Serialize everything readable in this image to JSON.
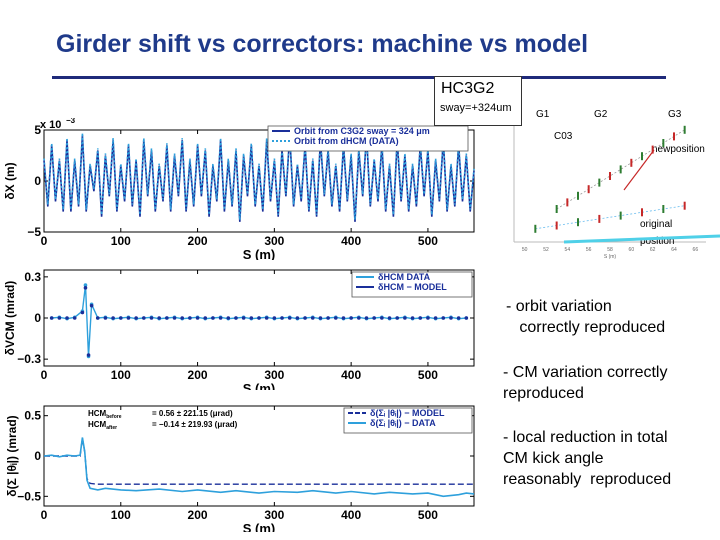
{
  "title": "Girder shift vs correctors: machine vs model",
  "hc_box": {
    "label": "HC3G2",
    "sway": "sway=+324um"
  },
  "notes": [
    [
      "- orbit variation",
      "   correctly reproduced"
    ],
    [
      "- CM variation correctly",
      "reproduced"
    ],
    [
      "- local reduction in total",
      "CM kick angle",
      "reasonably  reproduced"
    ]
  ],
  "colors": {
    "title": "#1f3a8a",
    "model": "#1a2f9a",
    "data": "#2ea0dc",
    "inset_red": "#c62828",
    "inset_green": "#2e7d32",
    "arrow": "#4fd0e8"
  },
  "chart_data": [
    {
      "type": "line",
      "ylabel": "δX (m)",
      "xlabel": "S (m)",
      "xlim": [
        0,
        560
      ],
      "ylim": [
        -0.005,
        0.005
      ],
      "y_multiplier_label": "x 10",
      "y_multiplier_exp": "−3",
      "xticks": [
        0,
        100,
        200,
        300,
        400,
        500
      ],
      "yticks": [
        {
          "v": 0.005,
          "label": "5"
        },
        {
          "v": 0,
          "label": "0"
        },
        {
          "v": -0.005,
          "label": "−5"
        }
      ],
      "legend_position": "top-right",
      "series": [
        {
          "name": "Orbit from C3G2 sway = 324 μm",
          "style": "solid",
          "x": [
            0,
            5,
            10,
            15,
            20,
            25,
            30,
            35,
            40,
            45,
            50,
            55,
            60,
            65,
            70,
            75,
            80,
            85,
            90,
            95,
            100,
            105,
            110,
            115,
            120,
            125,
            130,
            135,
            140,
            145,
            150,
            155,
            160,
            165,
            170,
            175,
            180,
            185,
            190,
            195,
            200,
            205,
            210,
            215,
            220,
            225,
            230,
            235,
            240,
            245,
            250,
            255,
            260,
            265,
            270,
            275,
            280,
            285,
            290,
            295,
            300,
            305,
            310,
            315,
            320,
            325,
            330,
            335,
            340,
            345,
            350,
            355,
            360,
            365,
            370,
            375,
            380,
            385,
            390,
            395,
            400,
            405,
            410,
            415,
            420,
            425,
            430,
            435,
            440,
            445,
            450,
            455,
            460,
            465,
            470,
            475,
            480,
            485,
            490,
            495,
            500,
            505,
            510,
            515,
            520,
            525,
            530,
            535,
            540,
            545,
            550,
            555,
            560
          ],
          "y": [
            0.002,
            -0.0025,
            0.0035,
            -0.002,
            0.002,
            -0.003,
            0.004,
            -0.003,
            0.002,
            -0.0025,
            0.0045,
            -0.003,
            0.0015,
            -0.001,
            0.003,
            -0.0035,
            0.0025,
            -0.0015,
            0.004,
            -0.003,
            0.0015,
            -0.002,
            0.0035,
            -0.0025,
            0.002,
            -0.0035,
            0.004,
            -0.0015,
            0.003,
            -0.003,
            0.0015,
            -0.002,
            0.0035,
            -0.003,
            0.0025,
            -0.0015,
            0.004,
            -0.003,
            0.002,
            -0.0025,
            0.0035,
            -0.0015,
            0.003,
            -0.0035,
            0.0015,
            -0.002,
            0.004,
            -0.003,
            0.002,
            -0.0025,
            0.003,
            -0.004,
            0.0025,
            -0.0015,
            0.0035,
            -0.0025,
            0.0015,
            -0.003,
            0.004,
            -0.002,
            0.002,
            -0.0035,
            0.003,
            -0.0015,
            0.0045,
            -0.0025,
            0.0015,
            -0.002,
            0.0035,
            -0.003,
            0.002,
            -0.0035,
            0.004,
            -0.0015,
            0.003,
            -0.0025,
            0.0015,
            -0.003,
            0.0035,
            -0.002,
            0.0025,
            -0.004,
            0.003,
            -0.0015,
            0.0045,
            -0.0025,
            0.002,
            -0.002,
            0.0035,
            -0.003,
            0.0015,
            -0.0035,
            0.004,
            -0.002,
            0.0025,
            -0.003,
            0.0015,
            -0.0025,
            0.0035,
            -0.0015,
            0.003,
            -0.0035,
            0.002,
            -0.002,
            0.004,
            -0.003,
            0.0015,
            -0.0025,
            0.0035,
            -0.002,
            0.0025,
            -0.003,
            0.001
          ]
        },
        {
          "name": "Orbit from dHCM (DATA)",
          "style": "dotted",
          "x": [
            0,
            5,
            10,
            15,
            20,
            25,
            30,
            35,
            40,
            45,
            50,
            55,
            60,
            65,
            70,
            75,
            80,
            85,
            90,
            95,
            100,
            105,
            110,
            115,
            120,
            125,
            130,
            135,
            140,
            145,
            150,
            155,
            160,
            165,
            170,
            175,
            180,
            185,
            190,
            195,
            200,
            205,
            210,
            215,
            220,
            225,
            230,
            235,
            240,
            245,
            250,
            255,
            260,
            265,
            270,
            275,
            280,
            285,
            290,
            295,
            300,
            305,
            310,
            315,
            320,
            325,
            330,
            335,
            340,
            345,
            350,
            355,
            360,
            365,
            370,
            375,
            380,
            385,
            390,
            395,
            400,
            405,
            410,
            415,
            420,
            425,
            430,
            435,
            440,
            445,
            450,
            455,
            460,
            465,
            470,
            475,
            480,
            485,
            490,
            495,
            500,
            505,
            510,
            515,
            520,
            525,
            530,
            535,
            540,
            545,
            550,
            555,
            560
          ],
          "y": [
            0.0022,
            -0.0023,
            0.0037,
            -0.0018,
            0.0022,
            -0.0028,
            0.0042,
            -0.0028,
            0.0022,
            -0.0023,
            0.0047,
            -0.0028,
            0.0017,
            -0.0008,
            0.0032,
            -0.0033,
            0.0027,
            -0.0013,
            0.0042,
            -0.0028,
            0.0017,
            -0.0018,
            0.0037,
            -0.0023,
            0.0022,
            -0.0033,
            0.0042,
            -0.0013,
            0.0032,
            -0.0028,
            0.0017,
            -0.0018,
            0.0037,
            -0.0028,
            0.0027,
            -0.0013,
            0.0042,
            -0.0028,
            0.0022,
            -0.0023,
            0.0037,
            -0.0013,
            0.0032,
            -0.0033,
            0.0017,
            -0.0018,
            0.0042,
            -0.0028,
            0.0022,
            -0.0023,
            0.0032,
            -0.0038,
            0.0027,
            -0.0013,
            0.0037,
            -0.0023,
            0.0017,
            -0.0028,
            0.0042,
            -0.0018,
            0.0022,
            -0.0033,
            0.0032,
            -0.0013,
            0.0047,
            -0.0023,
            0.0017,
            -0.0018,
            0.0037,
            -0.0028,
            0.0022,
            -0.0033,
            0.0042,
            -0.0013,
            0.0032,
            -0.0023,
            0.0017,
            -0.0028,
            0.0037,
            -0.0018,
            0.0027,
            -0.0038,
            0.0032,
            -0.0013,
            0.0047,
            -0.0023,
            0.0022,
            -0.0018,
            0.0037,
            -0.0028,
            0.0017,
            -0.0033,
            0.0042,
            -0.0018,
            0.0027,
            -0.0028,
            0.0017,
            -0.0023,
            0.0037,
            -0.0013,
            0.0032,
            -0.0033,
            0.0022,
            -0.0018,
            0.0042,
            -0.0028,
            0.0017,
            -0.0023,
            0.0037,
            -0.0018,
            0.0027,
            -0.0028,
            0.0012
          ]
        }
      ]
    },
    {
      "type": "scatter",
      "ylabel": "δVCM (mrad)",
      "xlabel": "S (m)",
      "xlim": [
        0,
        560
      ],
      "ylim": [
        -0.35,
        0.35
      ],
      "xticks": [
        0,
        100,
        200,
        300,
        400,
        500
      ],
      "yticks": [
        {
          "v": 0.3,
          "label": "0.3"
        },
        {
          "v": 0,
          "label": "0"
        },
        {
          "v": -0.3,
          "label": "−0.3"
        }
      ],
      "legend_position": "top-right",
      "series": [
        {
          "name": "δHCM   DATA",
          "style": "line-dots",
          "x": [
            10,
            20,
            30,
            40,
            50,
            54,
            58,
            62,
            70,
            80,
            90,
            100,
            110,
            120,
            130,
            140,
            150,
            160,
            170,
            180,
            190,
            200,
            210,
            220,
            230,
            240,
            250,
            260,
            270,
            280,
            290,
            300,
            310,
            320,
            330,
            340,
            350,
            360,
            370,
            380,
            390,
            400,
            410,
            420,
            430,
            440,
            450,
            460,
            470,
            480,
            490,
            500,
            510,
            520,
            530,
            540,
            550
          ],
          "y": [
            0,
            0.005,
            -0.005,
            0.005,
            0.05,
            0.24,
            -0.28,
            0.1,
            0,
            0.005,
            -0.005,
            0,
            0.005,
            -0.005,
            0,
            0.005,
            -0.005,
            0,
            0.005,
            -0.005,
            0,
            0.005,
            -0.005,
            0,
            0.005,
            -0.005,
            0,
            0.005,
            -0.005,
            0,
            0.005,
            -0.005,
            0,
            0.005,
            -0.005,
            0,
            0.005,
            -0.005,
            0,
            0.005,
            -0.005,
            0,
            0.005,
            -0.005,
            0,
            0.005,
            -0.005,
            0,
            0.005,
            -0.005,
            0,
            0.005,
            -0.005,
            0,
            0.005,
            -0.005,
            0
          ]
        },
        {
          "name": "δHCM − MODEL",
          "style": "dots",
          "x": [
            10,
            20,
            30,
            40,
            50,
            54,
            58,
            62,
            70,
            80,
            90,
            100,
            110,
            120,
            130,
            140,
            150,
            160,
            170,
            180,
            190,
            200,
            210,
            220,
            230,
            240,
            250,
            260,
            270,
            280,
            290,
            300,
            310,
            320,
            330,
            340,
            350,
            360,
            370,
            380,
            390,
            400,
            410,
            420,
            430,
            440,
            450,
            460,
            470,
            480,
            490,
            500,
            510,
            520,
            530,
            540,
            550
          ],
          "y": [
            0,
            0,
            0,
            0,
            0.04,
            0.22,
            -0.27,
            0.09,
            0,
            0,
            0,
            0,
            0,
            0,
            0,
            0,
            0,
            0,
            0,
            0,
            0,
            0,
            0,
            0,
            0,
            0,
            0,
            0,
            0,
            0,
            0,
            0,
            0,
            0,
            0,
            0,
            0,
            0,
            0,
            0,
            0,
            0,
            0,
            0,
            0,
            0,
            0,
            0,
            0,
            0,
            0,
            0,
            0,
            0,
            0,
            0,
            0
          ]
        }
      ]
    },
    {
      "type": "line",
      "ylabel": "δ(Σ |θᵢ|) (mrad)",
      "xlabel": "S (m)",
      "xlim": [
        0,
        560
      ],
      "ylim": [
        -0.62,
        0.62
      ],
      "xticks": [
        0,
        100,
        200,
        300,
        400,
        500
      ],
      "yticks": [
        {
          "v": 0.5,
          "label": "0.5"
        },
        {
          "v": 0,
          "label": "0"
        },
        {
          "v": -0.5,
          "label": "−0.5"
        }
      ],
      "legend_position": "top-right",
      "annotations": [
        {
          "name": "HCM",
          "sub": "before",
          "value": "0.56 ± 221.15 (μrad)"
        },
        {
          "name": "HCM",
          "sub": "after",
          "value": "−0.14 ± 219.93 (μrad)"
        }
      ],
      "series": [
        {
          "name": "δ(Σᵢ |θᵢ|) − MODEL",
          "style": "dashed",
          "x": [
            0,
            10,
            20,
            30,
            40,
            47,
            50,
            53,
            56,
            60,
            70,
            80,
            100,
            150,
            200,
            250,
            300,
            350,
            400,
            450,
            500,
            540,
            560
          ],
          "y": [
            0,
            0,
            0,
            0,
            0,
            0,
            0.22,
            0.05,
            -0.28,
            -0.34,
            -0.35,
            -0.35,
            -0.35,
            -0.35,
            -0.35,
            -0.35,
            -0.35,
            -0.35,
            -0.35,
            -0.35,
            -0.35,
            -0.35,
            -0.35
          ]
        },
        {
          "name": "δ(Σᵢ |θᵢ|) − DATA",
          "style": "solid",
          "x": [
            0,
            10,
            20,
            30,
            40,
            47,
            50,
            53,
            56,
            60,
            70,
            80,
            100,
            120,
            150,
            180,
            200,
            230,
            250,
            280,
            300,
            330,
            350,
            380,
            400,
            430,
            450,
            480,
            500,
            520,
            540,
            550,
            560
          ],
          "y": [
            0,
            0.01,
            -0.01,
            0.01,
            0,
            0.01,
            0.23,
            0.06,
            -0.3,
            -0.4,
            -0.42,
            -0.4,
            -0.42,
            -0.43,
            -0.41,
            -0.44,
            -0.42,
            -0.45,
            -0.43,
            -0.46,
            -0.44,
            -0.45,
            -0.43,
            -0.46,
            -0.44,
            -0.47,
            -0.45,
            -0.47,
            -0.46,
            -0.5,
            -0.48,
            -0.46,
            -0.47
          ]
        }
      ]
    },
    {
      "type": "scatter",
      "title_group_labels": [
        "G1",
        "G2",
        "G3"
      ],
      "corrector_label": "C03",
      "annotations": [
        "newposition",
        "original",
        "position"
      ],
      "xlabel": "S (m)",
      "xticks": [
        50,
        52,
        54,
        56,
        58,
        60,
        62,
        64,
        66
      ],
      "xlim": [
        49,
        67
      ],
      "ylim": [
        -5.5,
        -3.5
      ],
      "series": [
        {
          "name": "original",
          "x": [
            51,
            53,
            55,
            57,
            59,
            61,
            63,
            65
          ],
          "y": [
            -5.3,
            -5.25,
            -5.2,
            -5.15,
            -5.1,
            -5.05,
            -5.0,
            -4.95
          ]
        },
        {
          "name": "new position",
          "x": [
            53,
            54,
            55,
            56,
            57,
            58,
            59,
            60,
            61,
            62,
            63,
            64,
            65
          ],
          "y": [
            -5.0,
            -4.9,
            -4.8,
            -4.7,
            -4.6,
            -4.5,
            -4.4,
            -4.3,
            -4.2,
            -4.1,
            -4.0,
            -3.9,
            -3.8
          ]
        }
      ]
    }
  ]
}
